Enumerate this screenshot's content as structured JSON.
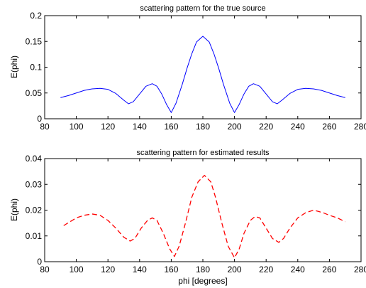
{
  "chart_data": [
    {
      "type": "line",
      "title": "scattering pattern for the true source",
      "xlabel": "",
      "ylabel": "E(phi)",
      "xlim": [
        80,
        280
      ],
      "ylim": [
        0,
        0.2
      ],
      "xticks": [
        "80",
        "100",
        "120",
        "140",
        "160",
        "180",
        "200",
        "220",
        "240",
        "260",
        "280"
      ],
      "yticks": [
        "0",
        "0.05",
        "0.1",
        "0.15",
        "0.2"
      ],
      "grid": false,
      "series": [
        {
          "color": "#0000ff",
          "style": "solid",
          "x": [
            90,
            95,
            100,
            105,
            110,
            115,
            120,
            125,
            130,
            133,
            136,
            140,
            144,
            148,
            151,
            154,
            157,
            160,
            163,
            167,
            170,
            173,
            176,
            180,
            184,
            187,
            190,
            193,
            197,
            200,
            203,
            206,
            209,
            212,
            216,
            220,
            224,
            227,
            230,
            235,
            240,
            245,
            250,
            255,
            260,
            265,
            270
          ],
          "y": [
            0.041,
            0.045,
            0.05,
            0.055,
            0.058,
            0.059,
            0.057,
            0.049,
            0.036,
            0.029,
            0.033,
            0.048,
            0.063,
            0.068,
            0.063,
            0.048,
            0.028,
            0.012,
            0.03,
            0.067,
            0.098,
            0.126,
            0.149,
            0.16,
            0.149,
            0.126,
            0.098,
            0.067,
            0.03,
            0.012,
            0.028,
            0.048,
            0.063,
            0.068,
            0.063,
            0.048,
            0.033,
            0.029,
            0.036,
            0.049,
            0.057,
            0.059,
            0.058,
            0.055,
            0.05,
            0.045,
            0.041
          ]
        }
      ]
    },
    {
      "type": "line",
      "title": "scattering pattern for estimated results",
      "xlabel": "phi [degrees]",
      "ylabel": "E(phi)",
      "xlim": [
        80,
        280
      ],
      "ylim": [
        0,
        0.04
      ],
      "xticks": [
        "80",
        "100",
        "120",
        "140",
        "160",
        "180",
        "200",
        "220",
        "240",
        "260",
        "280"
      ],
      "yticks": [
        "0",
        "0.01",
        "0.02",
        "0.03",
        "0.04"
      ],
      "grid": false,
      "series": [
        {
          "color": "#ff0000",
          "style": "dashed",
          "x": [
            92,
            96,
            100,
            105,
            110,
            115,
            120,
            125,
            130,
            134,
            137,
            141,
            145,
            148,
            151,
            155,
            159,
            162,
            165,
            169,
            173,
            177,
            181,
            185,
            188,
            192,
            196,
            200,
            203,
            206,
            210,
            213,
            216,
            220,
            224,
            228,
            231,
            235,
            240,
            245,
            250,
            253,
            256,
            260,
            265,
            270
          ],
          "y": [
            0.014,
            0.0155,
            0.017,
            0.018,
            0.0185,
            0.018,
            0.016,
            0.013,
            0.0095,
            0.008,
            0.009,
            0.013,
            0.016,
            0.017,
            0.016,
            0.011,
            0.005,
            0.002,
            0.006,
            0.015,
            0.025,
            0.031,
            0.0335,
            0.031,
            0.025,
            0.015,
            0.006,
            0.0015,
            0.005,
            0.011,
            0.016,
            0.0175,
            0.017,
            0.013,
            0.009,
            0.0075,
            0.009,
            0.013,
            0.017,
            0.019,
            0.02,
            0.0195,
            0.019,
            0.018,
            0.017,
            0.0155
          ]
        }
      ]
    }
  ]
}
